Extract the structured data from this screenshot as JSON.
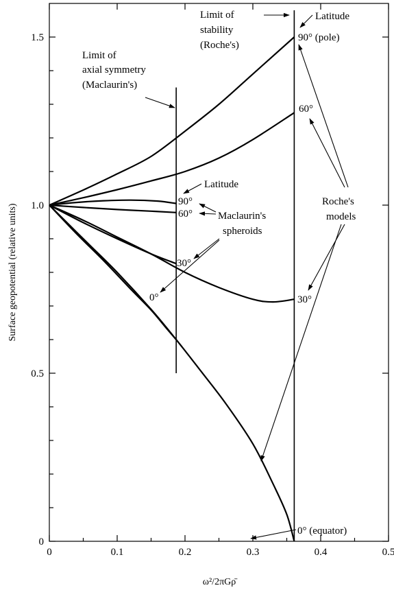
{
  "chart_data": {
    "type": "line",
    "title": "",
    "xlabel": "ω²/2πGρ̄",
    "ylabel": "Surface geopotential (relative units)",
    "xlim": [
      0,
      0.5
    ],
    "ylim": [
      0,
      1.6
    ],
    "x_ticks": [
      "0",
      "0.1",
      "0.2",
      "0.3",
      "0.4",
      "0.5"
    ],
    "y_ticks": [
      "0",
      "0.5",
      "1.0",
      "1.5"
    ],
    "x_ticks_values": [
      0,
      0.1,
      0.2,
      0.3,
      0.4,
      0.5
    ],
    "y_ticks_values": [
      0,
      0.5,
      1.0,
      1.5
    ],
    "y_minor_ticks": [
      0.1,
      0.2,
      0.3,
      0.4,
      0.6,
      0.7,
      0.8,
      0.9,
      1.1,
      1.2,
      1.3,
      1.4
    ],
    "grid": false,
    "legend": "none",
    "limits": [
      {
        "x": 0.187,
        "y_range": [
          0.5,
          1.35
        ],
        "label_lines": [
          "Limit of",
          "axial symmetry",
          "(Maclaurin's)"
        ]
      },
      {
        "x": 0.361,
        "y_range": [
          0,
          1.6
        ],
        "label_lines": [
          "Limit of",
          "stability",
          "(Roche's)"
        ]
      }
    ],
    "series": [
      {
        "group": "roche",
        "latitude": "90°",
        "x": [
          0,
          0.05,
          0.1,
          0.15,
          0.2,
          0.25,
          0.3,
          0.361
        ],
        "y": [
          1.0,
          1.045,
          1.093,
          1.145,
          1.22,
          1.3,
          1.39,
          1.5
        ]
      },
      {
        "group": "roche",
        "latitude": "60°",
        "x": [
          0,
          0.05,
          0.1,
          0.15,
          0.2,
          0.25,
          0.3,
          0.361
        ],
        "y": [
          1.0,
          1.022,
          1.046,
          1.072,
          1.1,
          1.14,
          1.195,
          1.275
        ]
      },
      {
        "group": "roche",
        "latitude": "30°",
        "x": [
          0,
          0.05,
          0.1,
          0.15,
          0.2,
          0.25,
          0.3,
          0.33,
          0.361
        ],
        "y": [
          1.0,
          0.955,
          0.905,
          0.855,
          0.8,
          0.755,
          0.72,
          0.712,
          0.72
        ]
      },
      {
        "group": "roche",
        "latitude": "0°",
        "x": [
          0,
          0.03,
          0.06,
          0.1,
          0.15,
          0.187,
          0.22,
          0.26,
          0.3,
          0.33,
          0.35,
          0.361
        ],
        "y": [
          1.0,
          0.94,
          0.88,
          0.8,
          0.69,
          0.6,
          0.515,
          0.41,
          0.29,
          0.17,
          0.08,
          0.0
        ]
      },
      {
        "group": "maclaurin",
        "latitude": "90°",
        "x": [
          0,
          0.04,
          0.08,
          0.12,
          0.16,
          0.187
        ],
        "y": [
          1.0,
          1.008,
          1.013,
          1.015,
          1.012,
          1.005
        ]
      },
      {
        "group": "maclaurin",
        "latitude": "60°",
        "x": [
          0,
          0.05,
          0.1,
          0.15,
          0.187
        ],
        "y": [
          1.0,
          0.993,
          0.987,
          0.982,
          0.978
        ]
      },
      {
        "group": "maclaurin",
        "latitude": "30°",
        "x": [
          0,
          0.05,
          0.1,
          0.15,
          0.187
        ],
        "y": [
          1.0,
          0.948,
          0.9,
          0.855,
          0.826
        ]
      },
      {
        "group": "maclaurin",
        "latitude": "0°",
        "x": [
          0,
          0.04,
          0.08,
          0.12,
          0.15,
          0.17,
          0.187
        ],
        "y": [
          1.0,
          0.915,
          0.835,
          0.75,
          0.688,
          0.64,
          0.6
        ]
      }
    ],
    "annotations": {
      "limit_maclaurin": [
        "Limit of",
        "axial symmetry",
        "(Maclaurin's)"
      ],
      "limit_roche": [
        "Limit of",
        "stability",
        "(Roche's)"
      ],
      "latitude_top": "Latitude",
      "latitude_mid": "Latitude",
      "roche_90": "90° (pole)",
      "roche_60": "60°",
      "roche_30": "30°",
      "roche_0": "0° (equator)",
      "mac_90": "90°",
      "mac_60": "60°",
      "mac_30": "30°",
      "mac_0": "0°",
      "maclaurins_spheroids": [
        "Maclaurin's",
        "spheroids"
      ],
      "roches_models": [
        "Roche's",
        "models"
      ]
    }
  }
}
